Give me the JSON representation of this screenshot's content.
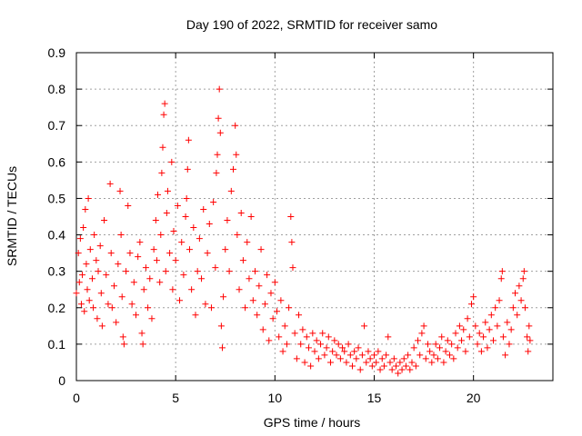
{
  "chart_data": {
    "type": "scatter",
    "title": "Day 190 of 2022, SRMTID for receiver samo",
    "xlabel": "GPS time / hours",
    "ylabel": "SRMTID / TECUs",
    "xlim": [
      0,
      24
    ],
    "ylim": [
      0,
      0.9
    ],
    "x_ticks": [
      0,
      5,
      10,
      15,
      20
    ],
    "y_ticks": [
      0,
      0.1,
      0.2,
      0.3,
      0.4,
      0.5,
      0.6,
      0.7,
      0.8,
      0.9
    ],
    "x_tick_labels": [
      "0",
      "5",
      "10",
      "15",
      "20"
    ],
    "y_tick_labels": [
      "0",
      "0.1",
      "0.2",
      "0.3",
      "0.4",
      "0.5",
      "0.6",
      "0.7",
      "0.8",
      "0.9"
    ],
    "grid": true,
    "marker": "+",
    "color": "#ff0000",
    "series": [
      {
        "name": "SRMTID",
        "points": [
          [
            0.0,
            0.24
          ],
          [
            0.1,
            0.35
          ],
          [
            0.15,
            0.27
          ],
          [
            0.2,
            0.39
          ],
          [
            0.25,
            0.21
          ],
          [
            0.3,
            0.29
          ],
          [
            0.35,
            0.42
          ],
          [
            0.4,
            0.19
          ],
          [
            0.45,
            0.47
          ],
          [
            0.5,
            0.32
          ],
          [
            0.55,
            0.25
          ],
          [
            0.6,
            0.5
          ],
          [
            0.65,
            0.22
          ],
          [
            0.7,
            0.36
          ],
          [
            0.8,
            0.28
          ],
          [
            0.85,
            0.2
          ],
          [
            0.9,
            0.4
          ],
          [
            1.0,
            0.33
          ],
          [
            1.05,
            0.17
          ],
          [
            1.1,
            0.3
          ],
          [
            1.2,
            0.37
          ],
          [
            1.25,
            0.24
          ],
          [
            1.3,
            0.15
          ],
          [
            1.4,
            0.44
          ],
          [
            1.5,
            0.29
          ],
          [
            1.6,
            0.21
          ],
          [
            1.7,
            0.54
          ],
          [
            1.75,
            0.35
          ],
          [
            1.8,
            0.2
          ],
          [
            1.9,
            0.26
          ],
          [
            2.0,
            0.16
          ],
          [
            2.1,
            0.32
          ],
          [
            2.2,
            0.52
          ],
          [
            2.25,
            0.4
          ],
          [
            2.3,
            0.23
          ],
          [
            2.35,
            0.12
          ],
          [
            2.4,
            0.1
          ],
          [
            2.5,
            0.3
          ],
          [
            2.6,
            0.48
          ],
          [
            2.7,
            0.35
          ],
          [
            2.8,
            0.21
          ],
          [
            2.9,
            0.27
          ],
          [
            3.0,
            0.18
          ],
          [
            3.1,
            0.34
          ],
          [
            3.2,
            0.38
          ],
          [
            3.3,
            0.13
          ],
          [
            3.35,
            0.1
          ],
          [
            3.4,
            0.25
          ],
          [
            3.5,
            0.31
          ],
          [
            3.6,
            0.2
          ],
          [
            3.7,
            0.28
          ],
          [
            3.8,
            0.17
          ],
          [
            3.9,
            0.36
          ],
          [
            4.0,
            0.44
          ],
          [
            4.05,
            0.33
          ],
          [
            4.1,
            0.51
          ],
          [
            4.2,
            0.27
          ],
          [
            4.25,
            0.4
          ],
          [
            4.3,
            0.57
          ],
          [
            4.35,
            0.64
          ],
          [
            4.4,
            0.73
          ],
          [
            4.45,
            0.76
          ],
          [
            4.5,
            0.3
          ],
          [
            4.55,
            0.46
          ],
          [
            4.6,
            0.52
          ],
          [
            4.7,
            0.35
          ],
          [
            4.8,
            0.6
          ],
          [
            4.85,
            0.25
          ],
          [
            4.9,
            0.41
          ],
          [
            5.0,
            0.33
          ],
          [
            5.1,
            0.48
          ],
          [
            5.2,
            0.22
          ],
          [
            5.3,
            0.38
          ],
          [
            5.4,
            0.29
          ],
          [
            5.5,
            0.45
          ],
          [
            5.55,
            0.5
          ],
          [
            5.6,
            0.58
          ],
          [
            5.65,
            0.66
          ],
          [
            5.7,
            0.36
          ],
          [
            5.8,
            0.25
          ],
          [
            5.9,
            0.42
          ],
          [
            6.0,
            0.18
          ],
          [
            6.1,
            0.3
          ],
          [
            6.2,
            0.39
          ],
          [
            6.3,
            0.28
          ],
          [
            6.4,
            0.47
          ],
          [
            6.5,
            0.21
          ],
          [
            6.6,
            0.35
          ],
          [
            6.7,
            0.43
          ],
          [
            6.8,
            0.2
          ],
          [
            6.9,
            0.49
          ],
          [
            7.0,
            0.31
          ],
          [
            7.05,
            0.57
          ],
          [
            7.1,
            0.62
          ],
          [
            7.15,
            0.72
          ],
          [
            7.2,
            0.8
          ],
          [
            7.25,
            0.68
          ],
          [
            7.3,
            0.15
          ],
          [
            7.35,
            0.09
          ],
          [
            7.4,
            0.23
          ],
          [
            7.5,
            0.36
          ],
          [
            7.6,
            0.44
          ],
          [
            7.7,
            0.3
          ],
          [
            7.8,
            0.52
          ],
          [
            7.9,
            0.58
          ],
          [
            8.0,
            0.7
          ],
          [
            8.05,
            0.62
          ],
          [
            8.1,
            0.4
          ],
          [
            8.2,
            0.25
          ],
          [
            8.3,
            0.46
          ],
          [
            8.4,
            0.33
          ],
          [
            8.5,
            0.2
          ],
          [
            8.6,
            0.38
          ],
          [
            8.7,
            0.28
          ],
          [
            8.8,
            0.45
          ],
          [
            8.9,
            0.22
          ],
          [
            9.0,
            0.3
          ],
          [
            9.1,
            0.18
          ],
          [
            9.2,
            0.26
          ],
          [
            9.3,
            0.36
          ],
          [
            9.4,
            0.14
          ],
          [
            9.5,
            0.21
          ],
          [
            9.6,
            0.29
          ],
          [
            9.7,
            0.11
          ],
          [
            9.8,
            0.24
          ],
          [
            9.9,
            0.17
          ],
          [
            10.0,
            0.27
          ],
          [
            10.1,
            0.19
          ],
          [
            10.2,
            0.12
          ],
          [
            10.3,
            0.22
          ],
          [
            10.4,
            0.08
          ],
          [
            10.5,
            0.15
          ],
          [
            10.6,
            0.1
          ],
          [
            10.7,
            0.2
          ],
          [
            10.8,
            0.45
          ],
          [
            10.85,
            0.38
          ],
          [
            10.9,
            0.31
          ],
          [
            11.0,
            0.13
          ],
          [
            11.1,
            0.06
          ],
          [
            11.2,
            0.18
          ],
          [
            11.3,
            0.1
          ],
          [
            11.4,
            0.14
          ],
          [
            11.5,
            0.05
          ],
          [
            11.6,
            0.12
          ],
          [
            11.7,
            0.09
          ],
          [
            11.8,
            0.04
          ],
          [
            11.9,
            0.13
          ],
          [
            12.0,
            0.08
          ],
          [
            12.1,
            0.11
          ],
          [
            12.2,
            0.06
          ],
          [
            12.3,
            0.1
          ],
          [
            12.4,
            0.13
          ],
          [
            12.5,
            0.07
          ],
          [
            12.6,
            0.09
          ],
          [
            12.7,
            0.12
          ],
          [
            12.8,
            0.05
          ],
          [
            12.9,
            0.08
          ],
          [
            13.0,
            0.11
          ],
          [
            13.1,
            0.07
          ],
          [
            13.2,
            0.1
          ],
          [
            13.3,
            0.06
          ],
          [
            13.4,
            0.09
          ],
          [
            13.5,
            0.08
          ],
          [
            13.6,
            0.05
          ],
          [
            13.7,
            0.1
          ],
          [
            13.8,
            0.07
          ],
          [
            13.9,
            0.04
          ],
          [
            14.0,
            0.08
          ],
          [
            14.1,
            0.06
          ],
          [
            14.2,
            0.09
          ],
          [
            14.3,
            0.03
          ],
          [
            14.4,
            0.07
          ],
          [
            14.5,
            0.15
          ],
          [
            14.6,
            0.05
          ],
          [
            14.7,
            0.08
          ],
          [
            14.8,
            0.06
          ],
          [
            14.9,
            0.04
          ],
          [
            15.0,
            0.07
          ],
          [
            15.1,
            0.05
          ],
          [
            15.2,
            0.08
          ],
          [
            15.3,
            0.03
          ],
          [
            15.4,
            0.06
          ],
          [
            15.5,
            0.04
          ],
          [
            15.6,
            0.07
          ],
          [
            15.7,
            0.12
          ],
          [
            15.8,
            0.05
          ],
          [
            15.9,
            0.03
          ],
          [
            16.0,
            0.06
          ],
          [
            16.1,
            0.04
          ],
          [
            16.2,
            0.02
          ],
          [
            16.3,
            0.05
          ],
          [
            16.4,
            0.03
          ],
          [
            16.5,
            0.06
          ],
          [
            16.6,
            0.04
          ],
          [
            16.7,
            0.07
          ],
          [
            16.8,
            0.03
          ],
          [
            16.9,
            0.05
          ],
          [
            17.0,
            0.09
          ],
          [
            17.1,
            0.04
          ],
          [
            17.2,
            0.11
          ],
          [
            17.3,
            0.07
          ],
          [
            17.4,
            0.13
          ],
          [
            17.5,
            0.15
          ],
          [
            17.6,
            0.06
          ],
          [
            17.7,
            0.1
          ],
          [
            17.8,
            0.08
          ],
          [
            17.9,
            0.05
          ],
          [
            18.0,
            0.07
          ],
          [
            18.1,
            0.1
          ],
          [
            18.2,
            0.06
          ],
          [
            18.3,
            0.09
          ],
          [
            18.4,
            0.12
          ],
          [
            18.5,
            0.05
          ],
          [
            18.6,
            0.08
          ],
          [
            18.7,
            0.11
          ],
          [
            18.8,
            0.07
          ],
          [
            18.9,
            0.1
          ],
          [
            19.0,
            0.06
          ],
          [
            19.1,
            0.13
          ],
          [
            19.2,
            0.09
          ],
          [
            19.3,
            0.15
          ],
          [
            19.4,
            0.11
          ],
          [
            19.5,
            0.14
          ],
          [
            19.6,
            0.08
          ],
          [
            19.7,
            0.17
          ],
          [
            19.8,
            0.12
          ],
          [
            19.9,
            0.21
          ],
          [
            20.0,
            0.23
          ],
          [
            20.1,
            0.15
          ],
          [
            20.2,
            0.1
          ],
          [
            20.3,
            0.13
          ],
          [
            20.4,
            0.08
          ],
          [
            20.5,
            0.12
          ],
          [
            20.6,
            0.16
          ],
          [
            20.7,
            0.09
          ],
          [
            20.8,
            0.14
          ],
          [
            20.9,
            0.18
          ],
          [
            21.0,
            0.11
          ],
          [
            21.1,
            0.2
          ],
          [
            21.2,
            0.15
          ],
          [
            21.3,
            0.22
          ],
          [
            21.4,
            0.28
          ],
          [
            21.45,
            0.3
          ],
          [
            21.5,
            0.12
          ],
          [
            21.6,
            0.07
          ],
          [
            21.7,
            0.16
          ],
          [
            21.8,
            0.1
          ],
          [
            21.9,
            0.14
          ],
          [
            22.0,
            0.2
          ],
          [
            22.1,
            0.24
          ],
          [
            22.2,
            0.18
          ],
          [
            22.3,
            0.26
          ],
          [
            22.4,
            0.22
          ],
          [
            22.5,
            0.28
          ],
          [
            22.55,
            0.3
          ],
          [
            22.6,
            0.2
          ],
          [
            22.7,
            0.12
          ],
          [
            22.75,
            0.08
          ],
          [
            22.8,
            0.15
          ],
          [
            22.85,
            0.11
          ]
        ]
      }
    ]
  }
}
